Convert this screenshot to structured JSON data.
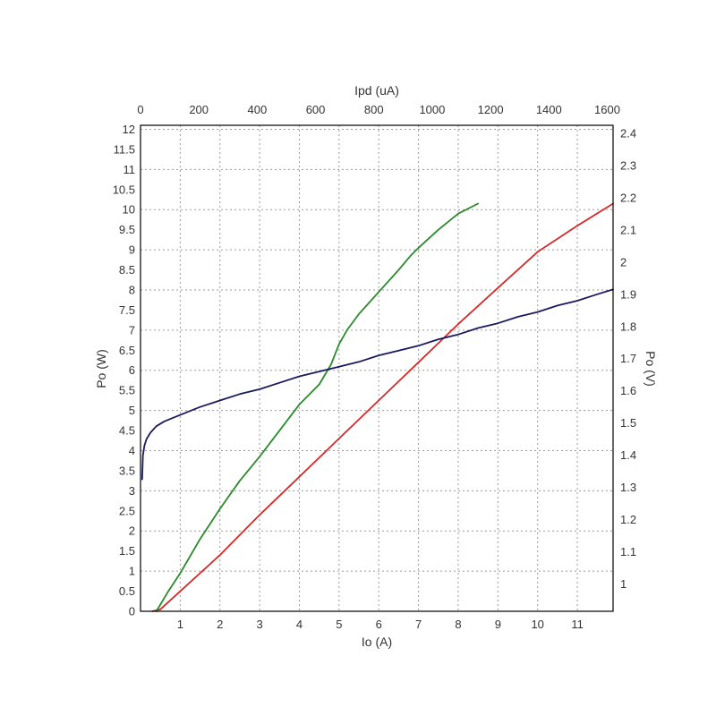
{
  "chart_data": {
    "type": "line",
    "title": "",
    "grid": true,
    "legend": "none",
    "axes": {
      "x_bottom": {
        "label": "Io (A)",
        "range": [
          0,
          11.9
        ],
        "ticks": [
          1,
          2,
          3,
          4,
          5,
          6,
          7,
          8,
          9,
          10,
          11
        ]
      },
      "x_top": {
        "label": "Ipd (uA)",
        "range": [
          0,
          1620
        ],
        "ticks": [
          0,
          200,
          400,
          600,
          800,
          1000,
          1200,
          1400,
          1600
        ]
      },
      "y_left": {
        "label": "Po (W)",
        "range": [
          0,
          12.1
        ],
        "ticks": [
          0,
          0.5,
          1,
          1.5,
          2,
          2.5,
          3,
          3.5,
          4,
          4.5,
          5,
          5.5,
          6,
          6.5,
          7,
          7.5,
          8,
          8.5,
          9,
          9.5,
          10,
          10.5,
          11,
          11.5,
          12
        ]
      },
      "y_right": {
        "label": "Po (V)",
        "range": [
          0.915,
          2.425
        ],
        "ticks": [
          1,
          1.1,
          1.2,
          1.3,
          1.4,
          1.5,
          1.6,
          1.7,
          1.8,
          1.9,
          2,
          2.1,
          2.2,
          2.3,
          2.4
        ]
      }
    },
    "series": [
      {
        "color": "#d62a2a",
        "x_axis": "x_bottom",
        "y_axis": "y_left",
        "x": [
          0.3,
          0.5,
          1,
          2,
          3,
          4,
          5,
          6,
          7,
          8,
          9,
          10,
          11,
          11.9
        ],
        "y": [
          0,
          0.05,
          0.5,
          1.4,
          2.4,
          3.35,
          4.3,
          5.25,
          6.2,
          7.15,
          8.05,
          8.95,
          9.6,
          10.15
        ]
      },
      {
        "color": "#2a8a2a",
        "x_axis": "x_bottom",
        "y_axis": "y_left",
        "x": [
          0.4,
          0.7,
          1,
          1.5,
          2,
          2.5,
          3,
          3.5,
          4,
          4.5,
          4.8,
          5,
          5.2,
          5.5,
          6,
          6.5,
          6.8,
          7,
          7.5,
          8,
          8.5
        ],
        "y": [
          0,
          0.5,
          0.95,
          1.8,
          2.55,
          3.25,
          3.85,
          4.5,
          5.15,
          5.65,
          6.15,
          6.65,
          7.0,
          7.4,
          7.95,
          8.5,
          8.85,
          9.05,
          9.5,
          9.9,
          10.15
        ]
      },
      {
        "color": "#1a1a5e",
        "x_axis": "x_bottom",
        "y_axis": "y_right",
        "x": [
          0.04,
          0.06,
          0.1,
          0.15,
          0.25,
          0.4,
          0.6,
          0.8,
          1,
          1.5,
          2,
          2.5,
          3,
          3.5,
          4,
          4.5,
          5,
          5.5,
          6,
          6.5,
          7,
          7.5,
          8,
          8.5,
          9,
          9.5,
          10,
          10.5,
          11,
          11.5,
          11.9
        ],
        "y": [
          1.325,
          1.4,
          1.43,
          1.45,
          1.47,
          1.49,
          1.505,
          1.515,
          1.525,
          1.55,
          1.57,
          1.59,
          1.605,
          1.625,
          1.645,
          1.66,
          1.675,
          1.69,
          1.71,
          1.725,
          1.74,
          1.76,
          1.775,
          1.795,
          1.81,
          1.83,
          1.845,
          1.865,
          1.88,
          1.9,
          1.915
        ]
      }
    ]
  }
}
